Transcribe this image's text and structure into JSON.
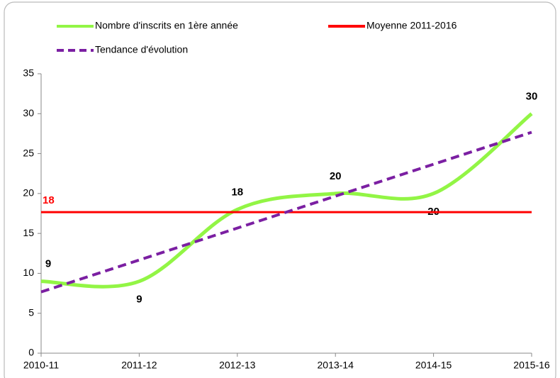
{
  "chart_data": {
    "type": "line",
    "categories": [
      "2010-11",
      "2011-12",
      "2012-13",
      "2013-14",
      "2014-15",
      "2015-16"
    ],
    "series": [
      {
        "name": "Nombre d'inscrits en 1ère année",
        "color": "#92f545",
        "values": [
          9,
          9,
          18,
          20,
          20,
          30
        ],
        "smooth": true
      },
      {
        "name": "Moyenne 2011-2016",
        "color": "#ff0000",
        "value": 17.67,
        "value_label": "18"
      },
      {
        "name": "Tendance d'évolution",
        "color": "#7b1fa2",
        "values": [
          7.67,
          11.67,
          15.67,
          19.67,
          23.67,
          27.67
        ],
        "dashed": true
      }
    ],
    "ylim": [
      0,
      35
    ],
    "yticks": [
      0,
      5,
      10,
      15,
      20,
      25,
      30,
      35
    ],
    "grid": false
  }
}
